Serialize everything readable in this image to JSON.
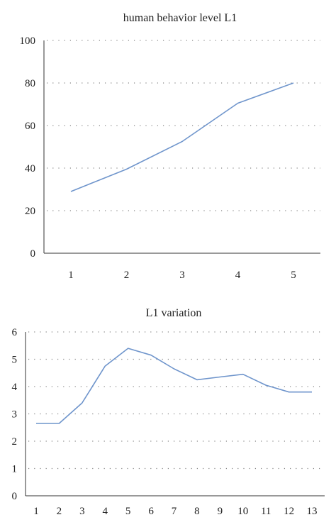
{
  "chart_data": [
    {
      "type": "line",
      "title": "human behavior level L1",
      "xlabel": "",
      "ylabel": "",
      "x": [
        1,
        2,
        3,
        4,
        5
      ],
      "series": [
        {
          "values": [
            29,
            39.5,
            52.5,
            70.5,
            80
          ],
          "color": "#6f95cc"
        }
      ],
      "ylim": [
        0,
        100
      ],
      "yticks": [
        0,
        20,
        40,
        60,
        80,
        100
      ],
      "xticks": [
        1,
        2,
        3,
        4,
        5
      ],
      "grid": true,
      "legend": "none"
    },
    {
      "type": "line",
      "title": "L1 variation",
      "xlabel": "",
      "ylabel": "",
      "x": [
        1,
        2,
        3,
        4,
        5,
        6,
        7,
        8,
        9,
        10,
        11,
        12,
        13
      ],
      "series": [
        {
          "values": [
            2.65,
            2.65,
            3.4,
            4.75,
            5.4,
            5.15,
            4.65,
            4.25,
            4.35,
            4.45,
            4.05,
            3.8,
            3.8
          ],
          "color": "#6f95cc"
        }
      ],
      "ylim": [
        0,
        6
      ],
      "yticks": [
        0,
        1,
        2,
        3,
        4,
        5,
        6
      ],
      "xticks": [
        1,
        2,
        3,
        4,
        5,
        6,
        7,
        8,
        9,
        10,
        11,
        12,
        13
      ],
      "grid": true,
      "legend": "none"
    }
  ]
}
